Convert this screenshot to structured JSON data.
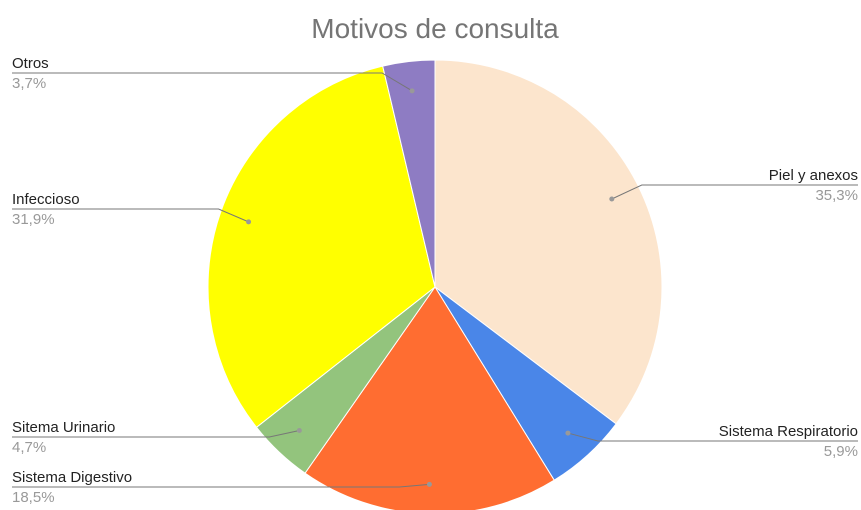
{
  "chart_data": {
    "type": "pie",
    "title": "Motivos de consulta",
    "categories": [
      "Piel y anexos",
      "Sistema Respiratorio",
      "Sistema Digestivo",
      "Sitema Urinario",
      "Infeccioso",
      "Otros"
    ],
    "values": [
      35.3,
      5.9,
      18.5,
      4.7,
      31.9,
      3.7
    ],
    "value_labels": [
      "35,3%",
      "5,9%",
      "18,5%",
      "4,7%",
      "31,9%",
      "3,7%"
    ],
    "colors": [
      "#fce5cd",
      "#4a86e8",
      "#ff6d31",
      "#93c47d",
      "#ffff00",
      "#8e7cc3"
    ]
  }
}
